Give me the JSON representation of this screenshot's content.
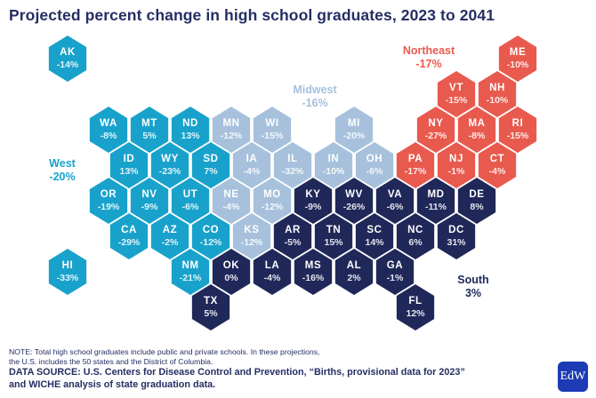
{
  "title": "Projected percent change in high school graduates, 2023 to 2041",
  "colors": {
    "west": "#18a2cb",
    "midwest": "#a7c1dc",
    "northeast": "#e95a4e",
    "south": "#20285a",
    "title_text": "#252e63",
    "logo_blue": "#1c3bb5"
  },
  "region_labels": {
    "northeast": {
      "name": "Northeast",
      "value": "-17%"
    },
    "midwest": {
      "name": "Midwest",
      "value": "-16%"
    },
    "west": {
      "name": "West",
      "value": "-20%"
    },
    "south": {
      "name": "South",
      "value": "3%"
    }
  },
  "chart_data": {
    "type": "heatmap",
    "subtype": "hex-tile-cartogram-of-us-states",
    "title": "Projected percent change in high school graduates, 2023 to 2041",
    "unit": "percent change",
    "legend_position": "region labels inline on map",
    "region_totals": {
      "West": -20,
      "Midwest": -16,
      "Northeast": -17,
      "South": 3
    },
    "states": [
      {
        "abbr": "AK",
        "value": -14,
        "label": "-14%",
        "region": "west",
        "col": -1,
        "row": 0
      },
      {
        "abbr": "ME",
        "value": -10,
        "label": "-10%",
        "region": "northeast",
        "col": 10,
        "row": 0
      },
      {
        "abbr": "VT",
        "value": -15,
        "label": "-15%",
        "region": "northeast",
        "col": 8,
        "row": 1
      },
      {
        "abbr": "NH",
        "value": -10,
        "label": "-10%",
        "region": "northeast",
        "col": 9,
        "row": 1
      },
      {
        "abbr": "WA",
        "value": -8,
        "label": "-8%",
        "region": "west",
        "col": 0,
        "row": 2
      },
      {
        "abbr": "MT",
        "value": 5,
        "label": "5%",
        "region": "west",
        "col": 1,
        "row": 2
      },
      {
        "abbr": "ND",
        "value": 13,
        "label": "13%",
        "region": "west",
        "col": 2,
        "row": 2
      },
      {
        "abbr": "MN",
        "value": -12,
        "label": "-12%",
        "region": "midwest",
        "col": 3,
        "row": 2
      },
      {
        "abbr": "WI",
        "value": -15,
        "label": "-15%",
        "region": "midwest",
        "col": 4,
        "row": 2
      },
      {
        "abbr": "MI",
        "value": -20,
        "label": "-20%",
        "region": "midwest",
        "col": 6,
        "row": 2
      },
      {
        "abbr": "NY",
        "value": -27,
        "label": "-27%",
        "region": "northeast",
        "col": 8,
        "row": 2
      },
      {
        "abbr": "MA",
        "value": -8,
        "label": "-8%",
        "region": "northeast",
        "col": 9,
        "row": 2
      },
      {
        "abbr": "RI",
        "value": -15,
        "label": "-15%",
        "region": "northeast",
        "col": 10,
        "row": 2
      },
      {
        "abbr": "ID",
        "value": 13,
        "label": "13%",
        "region": "west",
        "col": 0,
        "row": 3
      },
      {
        "abbr": "WY",
        "value": -23,
        "label": "-23%",
        "region": "west",
        "col": 1,
        "row": 3
      },
      {
        "abbr": "SD",
        "value": 7,
        "label": "7%",
        "region": "west",
        "col": 2,
        "row": 3
      },
      {
        "abbr": "IA",
        "value": -4,
        "label": "-4%",
        "region": "midwest",
        "col": 3,
        "row": 3
      },
      {
        "abbr": "IL",
        "value": -32,
        "label": "-32%",
        "region": "midwest",
        "col": 4,
        "row": 3
      },
      {
        "abbr": "IN",
        "value": -10,
        "label": "-10%",
        "region": "midwest",
        "col": 5,
        "row": 3
      },
      {
        "abbr": "OH",
        "value": -6,
        "label": "-6%",
        "region": "midwest",
        "col": 6,
        "row": 3
      },
      {
        "abbr": "PA",
        "value": -17,
        "label": "-17%",
        "region": "northeast",
        "col": 7,
        "row": 3
      },
      {
        "abbr": "NJ",
        "value": -1,
        "label": "-1%",
        "region": "northeast",
        "col": 8,
        "row": 3
      },
      {
        "abbr": "CT",
        "value": -4,
        "label": "-4%",
        "region": "northeast",
        "col": 9,
        "row": 3
      },
      {
        "abbr": "OR",
        "value": -19,
        "label": "-19%",
        "region": "west",
        "col": 0,
        "row": 4
      },
      {
        "abbr": "NV",
        "value": -9,
        "label": "-9%",
        "region": "west",
        "col": 1,
        "row": 4
      },
      {
        "abbr": "UT",
        "value": -6,
        "label": "-6%",
        "region": "west",
        "col": 2,
        "row": 4
      },
      {
        "abbr": "NE",
        "value": -4,
        "label": "-4%",
        "region": "midwest",
        "col": 3,
        "row": 4
      },
      {
        "abbr": "MO",
        "value": -12,
        "label": "-12%",
        "region": "midwest",
        "col": 4,
        "row": 4
      },
      {
        "abbr": "KY",
        "value": -9,
        "label": "-9%",
        "region": "south",
        "col": 5,
        "row": 4
      },
      {
        "abbr": "WV",
        "value": -26,
        "label": "-26%",
        "region": "south",
        "col": 6,
        "row": 4
      },
      {
        "abbr": "VA",
        "value": -6,
        "label": "-6%",
        "region": "south",
        "col": 7,
        "row": 4
      },
      {
        "abbr": "MD",
        "value": -11,
        "label": "-11%",
        "region": "south",
        "col": 8,
        "row": 4
      },
      {
        "abbr": "DE",
        "value": 8,
        "label": "8%",
        "region": "south",
        "col": 9,
        "row": 4
      },
      {
        "abbr": "CA",
        "value": -29,
        "label": "-29%",
        "region": "west",
        "col": 0,
        "row": 5
      },
      {
        "abbr": "AZ",
        "value": -2,
        "label": "-2%",
        "region": "west",
        "col": 1,
        "row": 5
      },
      {
        "abbr": "CO",
        "value": -12,
        "label": "-12%",
        "region": "west",
        "col": 2,
        "row": 5
      },
      {
        "abbr": "KS",
        "value": -12,
        "label": "-12%",
        "region": "midwest",
        "col": 3,
        "row": 5
      },
      {
        "abbr": "AR",
        "value": -5,
        "label": "-5%",
        "region": "south",
        "col": 4,
        "row": 5
      },
      {
        "abbr": "TN",
        "value": 15,
        "label": "15%",
        "region": "south",
        "col": 5,
        "row": 5
      },
      {
        "abbr": "SC",
        "value": 14,
        "label": "14%",
        "region": "south",
        "col": 6,
        "row": 5
      },
      {
        "abbr": "NC",
        "value": 6,
        "label": "6%",
        "region": "south",
        "col": 7,
        "row": 5
      },
      {
        "abbr": "DC",
        "value": 31,
        "label": "31%",
        "region": "south",
        "col": 8,
        "row": 5
      },
      {
        "abbr": "HI",
        "value": -33,
        "label": "-33%",
        "region": "west",
        "col": -1,
        "row": 6
      },
      {
        "abbr": "NM",
        "value": -21,
        "label": "-21%",
        "region": "west",
        "col": 2,
        "row": 6
      },
      {
        "abbr": "OK",
        "value": 0,
        "label": "0%",
        "region": "south",
        "col": 3,
        "row": 6
      },
      {
        "abbr": "LA",
        "value": -4,
        "label": "-4%",
        "region": "south",
        "col": 4,
        "row": 6
      },
      {
        "abbr": "MS",
        "value": -16,
        "label": "-16%",
        "region": "south",
        "col": 5,
        "row": 6
      },
      {
        "abbr": "AL",
        "value": 2,
        "label": "2%",
        "region": "south",
        "col": 6,
        "row": 6
      },
      {
        "abbr": "GA",
        "value": -1,
        "label": "-1%",
        "region": "south",
        "col": 7,
        "row": 6
      },
      {
        "abbr": "TX",
        "value": 5,
        "label": "5%",
        "region": "south",
        "col": 2,
        "row": 7
      },
      {
        "abbr": "FL",
        "value": 12,
        "label": "12%",
        "region": "south",
        "col": 7,
        "row": 7
      }
    ]
  },
  "notes": {
    "note_line1": "NOTE: Total high school graduates include public and private schools. In these projections,",
    "note_line2": "the U.S. includes the 50 states and the District of Columbia.",
    "source_line1": "DATA SOURCE: U.S. Centers for Disease Control and Prevention, “Births, provisional data for 2023”",
    "source_line2": "and WICHE analysis of state graduation data."
  },
  "logo": {
    "text": "EdW"
  }
}
